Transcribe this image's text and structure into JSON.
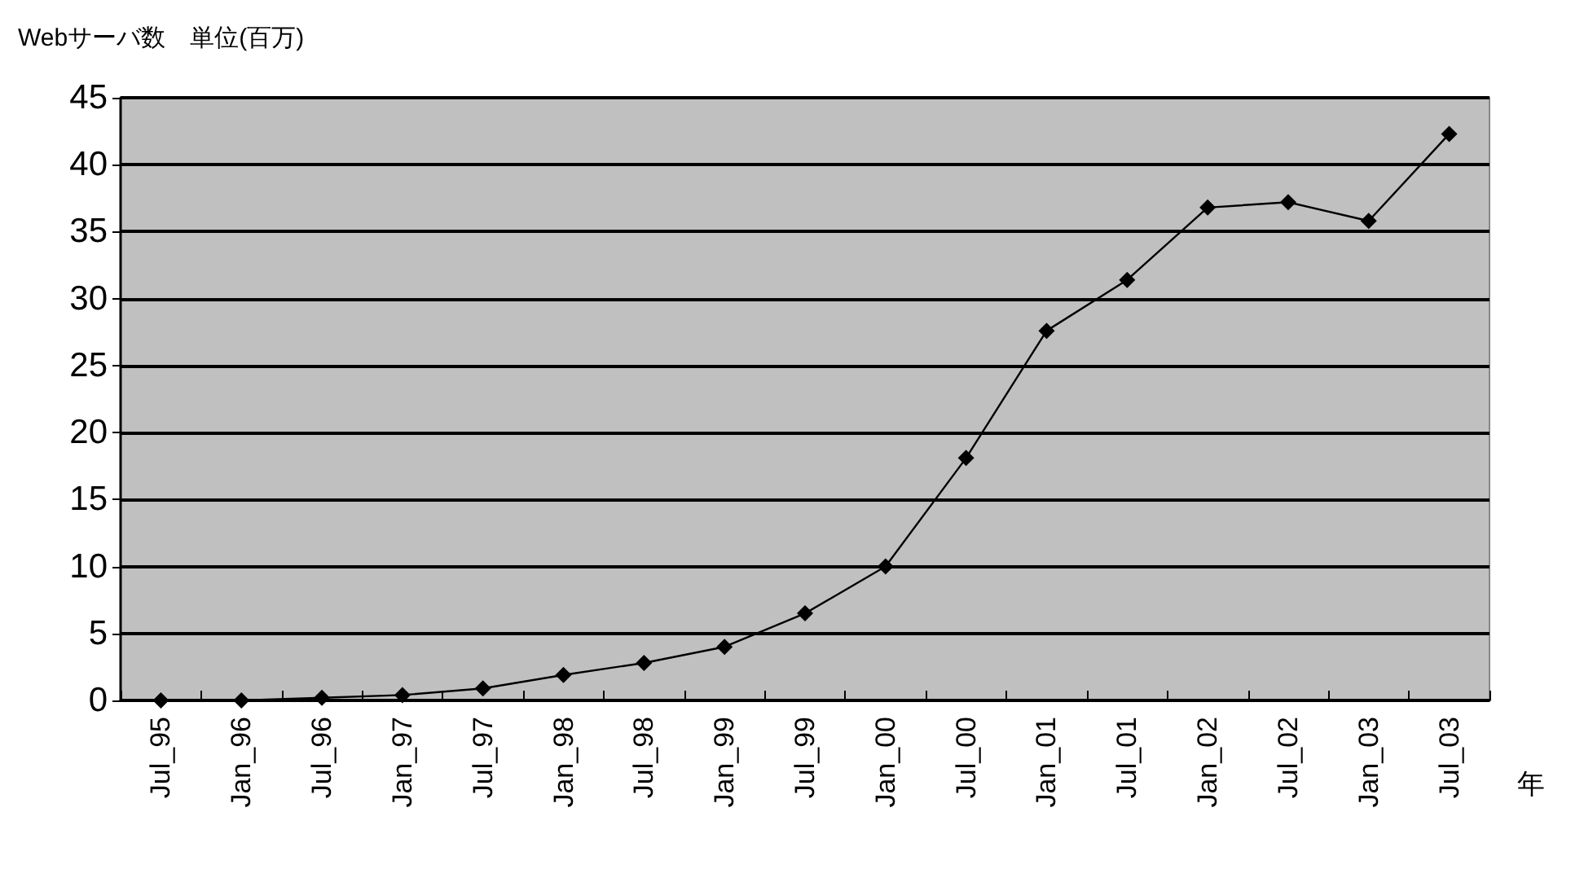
{
  "chart_data": {
    "type": "line",
    "ylabel": "Webサーバ数　単位(百万)",
    "xlabel": "年",
    "categories": [
      "Jul_95",
      "Jan_96",
      "Jul_96",
      "Jan_97",
      "Jul_97",
      "Jan_98",
      "Jul_98",
      "Jan_99",
      "Jul_99",
      "Jan_00",
      "Jul_00",
      "Jan_01",
      "Jul_01",
      "Jan_02",
      "Jul_02",
      "Jan_03",
      "Jul_03"
    ],
    "series": [
      {
        "color": "#000000",
        "values": [
          0,
          0,
          0.2,
          0.4,
          0.9,
          1.9,
          2.8,
          4.0,
          6.5,
          10.0,
          18.1,
          27.6,
          31.4,
          36.8,
          37.2,
          35.8,
          42.3
        ]
      }
    ],
    "ylim": [
      0,
      45
    ],
    "yticks": [
      0,
      5,
      10,
      15,
      20,
      25,
      30,
      35,
      40,
      45
    ],
    "grid": "y",
    "marker": "diamond",
    "line_style": "solid"
  }
}
